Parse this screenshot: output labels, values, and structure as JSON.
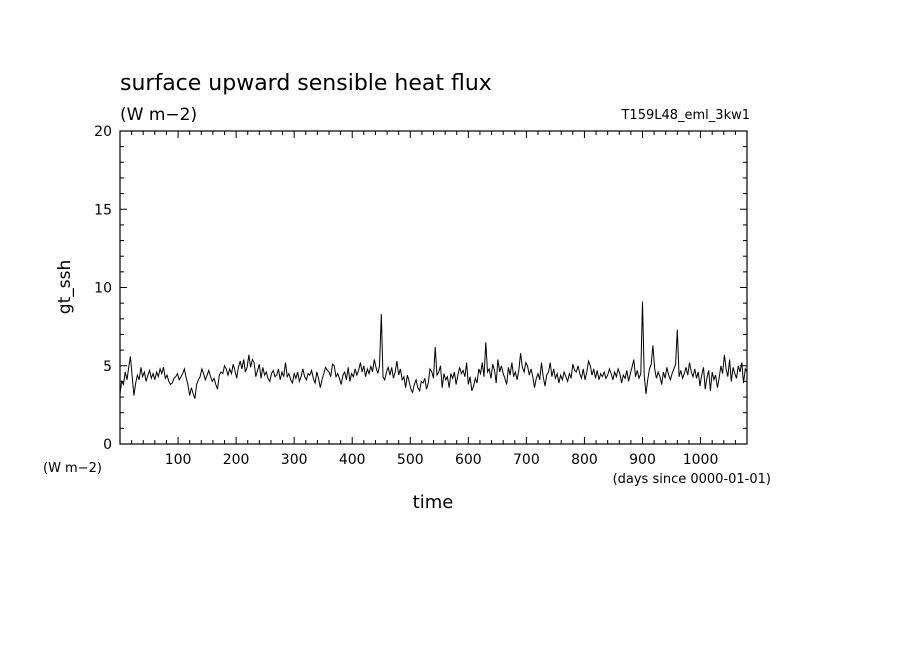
{
  "chart_data": {
    "type": "line",
    "title": "surface upward sensible heat flux",
    "subtitle": "(W m−2)",
    "run_label": "T159L48_eml_3kw1",
    "ylabel": "gt_ssh",
    "y_unit_label": "(W m−2)",
    "xlabel": "time",
    "x_unit_label": "(days since 0000-01-01)",
    "xlim": [
      0,
      1080
    ],
    "ylim": [
      0,
      20
    ],
    "x_ticks": [
      100,
      200,
      300,
      400,
      500,
      600,
      700,
      800,
      900,
      1000
    ],
    "y_ticks": [
      0,
      5,
      10,
      15,
      20
    ],
    "grid": false,
    "series": [
      {
        "color": "#000000",
        "x_start": 0,
        "x_step": 3,
        "values": [
          3.2,
          4.0,
          3.8,
          4.6,
          4.1,
          4.9,
          5.6,
          4.3,
          3.1,
          3.9,
          4.4,
          4.1,
          4.9,
          4.3,
          4.6,
          4.0,
          4.4,
          4.7,
          4.2,
          4.5,
          4.1,
          4.6,
          4.3,
          4.8,
          4.5,
          4.9,
          4.2,
          4.4,
          4.0,
          3.8,
          3.9,
          4.2,
          4.3,
          4.5,
          4.1,
          4.3,
          4.5,
          4.8,
          4.2,
          3.8,
          3.1,
          3.6,
          3.2,
          2.9,
          3.8,
          4.1,
          4.3,
          4.8,
          4.5,
          4.1,
          4.4,
          4.7,
          4.3,
          4.0,
          4.2,
          3.8,
          3.5,
          4.4,
          4.6,
          4.5,
          5.0,
          4.8,
          4.4,
          4.8,
          4.5,
          5.1,
          4.7,
          4.2,
          4.9,
          5.3,
          4.8,
          5.4,
          4.6,
          4.9,
          5.7,
          4.9,
          5.4,
          5.2,
          4.3,
          4.7,
          5.1,
          4.2,
          4.9,
          4.4,
          4.6,
          4.2,
          4.0,
          4.5,
          4.7,
          4.3,
          4.4,
          4.8,
          4.1,
          4.6,
          4.3,
          5.2,
          4.3,
          4.5,
          4.1,
          3.9,
          4.5,
          4.2,
          4.6,
          4.0,
          4.3,
          4.8,
          4.3,
          4.1,
          4.5,
          4.4,
          4.7,
          4.2,
          3.9,
          4.6,
          4.2,
          3.6,
          4.1,
          4.5,
          4.9,
          4.7,
          4.6,
          4.3,
          5.1,
          5.0,
          4.3,
          4.5,
          4.2,
          3.8,
          4.4,
          4.6,
          4.1,
          4.9,
          4.0,
          4.5,
          4.3,
          4.8,
          4.4,
          4.7,
          5.2,
          4.6,
          5.0,
          4.3,
          4.8,
          4.5,
          5.0,
          4.6,
          5.4,
          4.9,
          4.5,
          5.0,
          8.3,
          4.3,
          4.1,
          4.6,
          4.9,
          4.4,
          4.9,
          4.2,
          4.6,
          5.3,
          4.4,
          4.8,
          4.1,
          4.3,
          3.6,
          4.4,
          4.0,
          3.5,
          3.3,
          3.8,
          4.1,
          3.6,
          3.4,
          4.0,
          3.9,
          4.2,
          3.5,
          3.9,
          4.8,
          4.6,
          4.2,
          6.2,
          4.4,
          4.6,
          5.0,
          3.6,
          4.5,
          4.1,
          4.3,
          3.6,
          4.5,
          4.2,
          4.6,
          3.8,
          4.4,
          4.9,
          4.5,
          4.7,
          4.3,
          5.2,
          3.8,
          4.3,
          3.4,
          3.7,
          4.2,
          3.9,
          4.8,
          4.5,
          5.2,
          4.3,
          6.5,
          4.6,
          4.8,
          4.2,
          5.1,
          4.7,
          3.9,
          5.4,
          4.6,
          5.0,
          4.5,
          4.2,
          3.8,
          4.9,
          4.4,
          5.2,
          4.3,
          4.6,
          4.1,
          4.7,
          5.8,
          4.9,
          4.6,
          5.2,
          5.0,
          4.4,
          4.8,
          4.3,
          3.6,
          4.2,
          4.5,
          4.1,
          5.2,
          4.3,
          3.7,
          4.4,
          4.6,
          5.2,
          4.3,
          4.8,
          4.2,
          4.5,
          3.9,
          4.4,
          4.1,
          4.6,
          4.3,
          4.0,
          4.5,
          4.2,
          5.1,
          4.7,
          4.6,
          5.0,
          4.5,
          4.2,
          4.8,
          4.1,
          4.6,
          5.3,
          5.0,
          4.4,
          4.8,
          4.2,
          4.7,
          4.1,
          4.5,
          4.3,
          4.6,
          4.2,
          4.4,
          4.8,
          4.5,
          4.1,
          4.6,
          4.3,
          4.8,
          4.5,
          3.9,
          4.4,
          4.2,
          4.7,
          4.0,
          4.5,
          4.9,
          5.4,
          4.3,
          4.7,
          4.2,
          4.5,
          9.1,
          4.4,
          3.2,
          4.1,
          4.8,
          5.1,
          6.3,
          4.8,
          4.2,
          4.6,
          4.3,
          3.8,
          4.6,
          4.2,
          4.9,
          4.4,
          4.1,
          4.5,
          4.8,
          5.1,
          7.3,
          4.3,
          4.7,
          4.2,
          4.5,
          4.9,
          4.4,
          5.2,
          4.6,
          4.3,
          4.8,
          4.2,
          4.6,
          3.7,
          4.4,
          4.9,
          3.5,
          4.2,
          4.7,
          3.4,
          4.6,
          4.1,
          4.4,
          3.6,
          4.2,
          5.0,
          4.5,
          5.7,
          4.8,
          4.3,
          5.4,
          4.0,
          4.9,
          4.5,
          4.2,
          5.0,
          4.6,
          5.2,
          3.9,
          4.8,
          4.6
        ]
      }
    ]
  }
}
